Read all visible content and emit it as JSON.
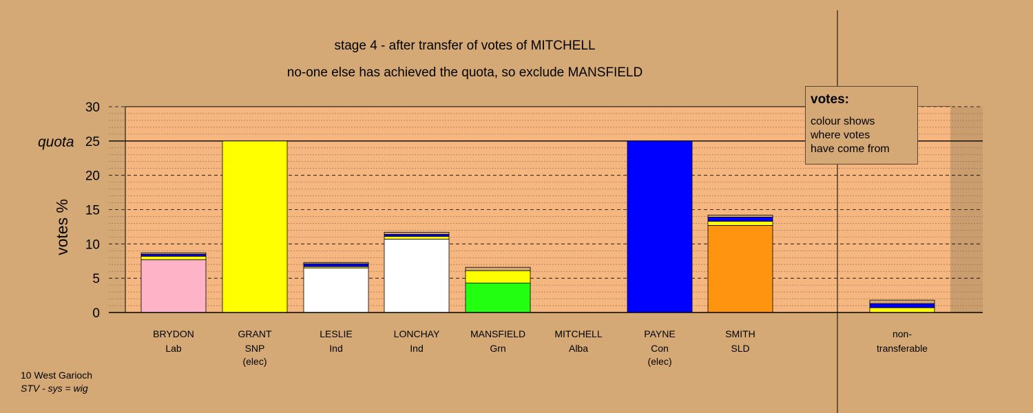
{
  "chart_data": {
    "type": "bar",
    "title": "stage 4 - after transfer of votes of MITCHELL",
    "subtitle": "no-one else has achieved the quota, so exclude MANSFIELD",
    "ylabel": "votes %",
    "ylim": [
      0,
      30
    ],
    "yticks": [
      0,
      5,
      10,
      15,
      20,
      25,
      30
    ],
    "quota": 25,
    "quota_label": "quota",
    "candidates": [
      {
        "name": "BRYDON",
        "party": "Lab",
        "note": "",
        "segments": [
          {
            "color": "#ffb3c6",
            "value": 7.7
          },
          {
            "color": "#ffff00",
            "value": 0.5
          },
          {
            "color": "#0000ff",
            "value": 0.3
          },
          {
            "color": "#d4a976",
            "value": 0.2
          }
        ]
      },
      {
        "name": "GRANT",
        "party": "SNP",
        "note": "(elec)",
        "segments": [
          {
            "color": "#ffff00",
            "value": 25.0
          }
        ]
      },
      {
        "name": "LESLIE",
        "party": "Ind",
        "note": "",
        "segments": [
          {
            "color": "#ffffff",
            "value": 6.5
          },
          {
            "color": "#ffff00",
            "value": 0.2
          },
          {
            "color": "#0000ff",
            "value": 0.4
          },
          {
            "color": "#d4a976",
            "value": 0.2
          }
        ]
      },
      {
        "name": "LONCHAY",
        "party": "Ind",
        "note": "",
        "segments": [
          {
            "color": "#ffffff",
            "value": 10.7
          },
          {
            "color": "#ffff00",
            "value": 0.4
          },
          {
            "color": "#0000ff",
            "value": 0.3
          },
          {
            "color": "#d4a976",
            "value": 0.3
          }
        ]
      },
      {
        "name": "MANSFIELD",
        "party": "Grn",
        "note": "",
        "segments": [
          {
            "color": "#22ff11",
            "value": 4.3
          },
          {
            "color": "#ffff00",
            "value": 1.8
          },
          {
            "color": "#d4a976",
            "value": 0.5
          }
        ]
      },
      {
        "name": "MITCHELL",
        "party": "Alba",
        "note": "",
        "segments": []
      },
      {
        "name": "PAYNE",
        "party": "Con",
        "note": "(elec)",
        "segments": [
          {
            "color": "#0000ff",
            "value": 25.0
          }
        ]
      },
      {
        "name": "SMITH",
        "party": "SLD",
        "note": "",
        "segments": [
          {
            "color": "#ff9411",
            "value": 12.7
          },
          {
            "color": "#ffff00",
            "value": 0.6
          },
          {
            "color": "#0000ff",
            "value": 0.6
          },
          {
            "color": "#d4a976",
            "value": 0.3
          }
        ]
      }
    ],
    "nontransferable": {
      "label_line1": "non-",
      "label_line2": "transferable",
      "segments": [
        {
          "color": "#ffff00",
          "value": 0.7
        },
        {
          "color": "#0000ff",
          "value": 0.6
        },
        {
          "color": "#d4a976",
          "value": 0.5
        }
      ]
    },
    "background_color": "#d4a976",
    "plot_color": "#f5b67f"
  },
  "legend": {
    "title": "votes:",
    "lines": [
      "colour shows",
      "where votes",
      "have come from"
    ]
  },
  "footer": {
    "line1": "10 West Garioch",
    "line2": "STV - sys = wig"
  }
}
